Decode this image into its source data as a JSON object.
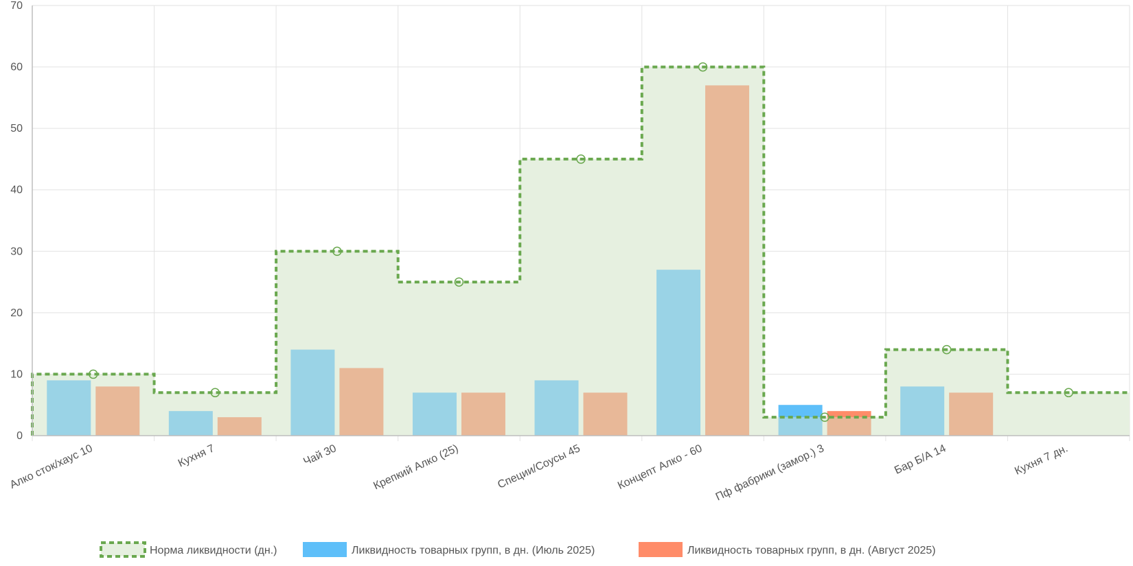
{
  "chart_data": {
    "type": "bar",
    "categories": [
      "Алко сток/хаус 10",
      "Кухня 7",
      "Чай 30",
      "Крепкий Алко (25)",
      "Специи/Соусы 45",
      "Концепт Алко - 60",
      "Пф фабрики (замор.) 3",
      "Бар Б/А 14",
      "Кухня 7 дн."
    ],
    "series": [
      {
        "name": "Норма ликвидности (дн.)",
        "kind": "stepped-area",
        "values": [
          10,
          7,
          30,
          25,
          45,
          60,
          3,
          14,
          7
        ],
        "color": "#6aa84f",
        "fill": "#e6f0e0"
      },
      {
        "name": "Ликвидность товарных групп, в дн. (Июль 2025)",
        "kind": "bar",
        "values": [
          9,
          4,
          14,
          7,
          9,
          27,
          5,
          8,
          null
        ],
        "color": "#5ebff9",
        "color_in_norm": "#9ad3e6"
      },
      {
        "name": "Ликвидность товарных групп, в дн. (Август 2025)",
        "kind": "bar",
        "values": [
          8,
          3,
          11,
          7,
          7,
          57,
          4,
          7,
          null
        ],
        "color": "#ff8c69",
        "color_in_norm": "#e8b898"
      }
    ],
    "yticks": [
      0,
      10,
      20,
      30,
      40,
      50,
      60,
      70
    ],
    "ylim": [
      0,
      70
    ],
    "grid": true,
    "legend": "bottom",
    "title": "",
    "xlabel": "",
    "ylabel": ""
  }
}
